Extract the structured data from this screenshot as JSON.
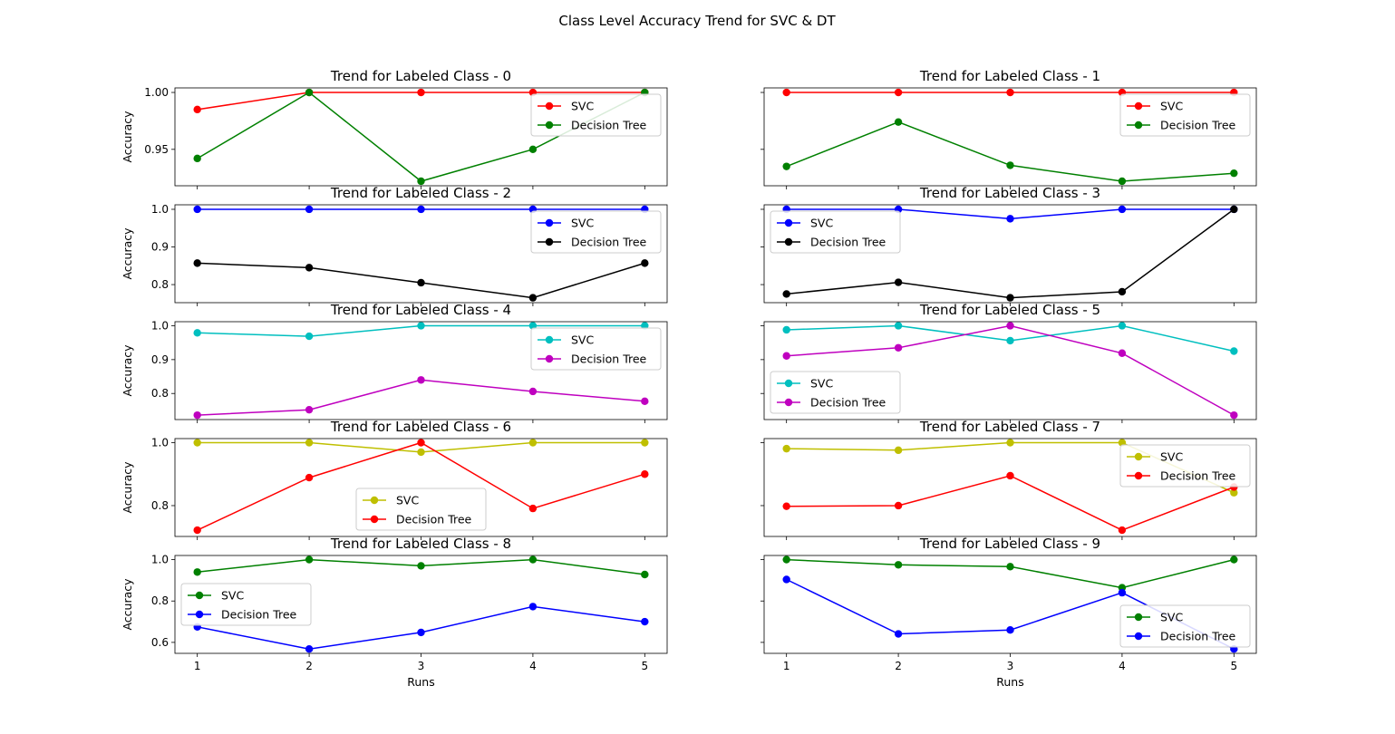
{
  "figure_title": "Class Level Accuracy Trend for SVC & DT",
  "chart_data": [
    {
      "type": "line",
      "title": "Trend for Labeled Class - 0",
      "x": [
        1,
        2,
        3,
        4,
        5
      ],
      "xticks": [
        "1",
        "2",
        "3",
        "4",
        "5"
      ],
      "xlabel": "",
      "ylabel": "Accuracy",
      "ylim": [
        0.918,
        1.004
      ],
      "yticks": [
        0.95,
        1.0
      ],
      "ytick_labels": [
        "0.95",
        "1.00"
      ],
      "legend": "upper-right",
      "grid": false,
      "series": [
        {
          "name": "SVC",
          "color": "#ff0000",
          "values": [
            0.985,
            1.0,
            1.0,
            1.0,
            1.0
          ]
        },
        {
          "name": "Decision Tree",
          "color": "#008000",
          "values": [
            0.942,
            1.0,
            0.922,
            0.95,
            1.0
          ]
        }
      ]
    },
    {
      "type": "line",
      "title": "Trend for Labeled Class - 1",
      "x": [
        1,
        2,
        3,
        4,
        5
      ],
      "xticks": [
        "1",
        "2",
        "3",
        "4",
        "5"
      ],
      "xlabel": "",
      "ylabel": "",
      "ylim": [
        0.918,
        1.004
      ],
      "yticks": [
        0.95,
        1.0
      ],
      "ytick_labels": [
        "",
        ""
      ],
      "legend": "upper-right",
      "grid": false,
      "series": [
        {
          "name": "SVC",
          "color": "#ff0000",
          "values": [
            1.0,
            1.0,
            1.0,
            1.0,
            1.0
          ]
        },
        {
          "name": "Decision Tree",
          "color": "#008000",
          "values": [
            0.935,
            0.974,
            0.936,
            0.922,
            0.929
          ]
        }
      ]
    },
    {
      "type": "line",
      "title": "Trend for Labeled Class - 2",
      "x": [
        1,
        2,
        3,
        4,
        5
      ],
      "xticks": [
        "1",
        "2",
        "3",
        "4",
        "5"
      ],
      "xlabel": "",
      "ylabel": "Accuracy",
      "ylim": [
        0.752,
        1.012
      ],
      "yticks": [
        0.8,
        0.9,
        1.0
      ],
      "ytick_labels": [
        "0.8",
        "0.9",
        "1.0"
      ],
      "legend": "upper-right",
      "grid": false,
      "series": [
        {
          "name": "SVC",
          "color": "#0000ff",
          "values": [
            1.0,
            1.0,
            1.0,
            1.0,
            1.0
          ]
        },
        {
          "name": "Decision Tree",
          "color": "#000000",
          "values": [
            0.857,
            0.845,
            0.805,
            0.765,
            0.857
          ]
        }
      ]
    },
    {
      "type": "line",
      "title": "Trend for Labeled Class - 3",
      "x": [
        1,
        2,
        3,
        4,
        5
      ],
      "xticks": [
        "1",
        "2",
        "3",
        "4",
        "5"
      ],
      "xlabel": "",
      "ylabel": "",
      "ylim": [
        0.752,
        1.012
      ],
      "yticks": [
        0.8,
        0.9,
        1.0
      ],
      "ytick_labels": [
        "",
        "",
        ""
      ],
      "legend": "upper-left",
      "grid": false,
      "series": [
        {
          "name": "SVC",
          "color": "#0000ff",
          "values": [
            1.0,
            1.0,
            0.975,
            1.0,
            1.0
          ]
        },
        {
          "name": "Decision Tree",
          "color": "#000000",
          "values": [
            0.775,
            0.806,
            0.765,
            0.781,
            1.0
          ]
        }
      ]
    },
    {
      "type": "line",
      "title": "Trend for Labeled Class - 4",
      "x": [
        1,
        2,
        3,
        4,
        5
      ],
      "xticks": [
        "1",
        "2",
        "3",
        "4",
        "5"
      ],
      "xlabel": "",
      "ylabel": "Accuracy",
      "ylim": [
        0.723,
        1.012
      ],
      "yticks": [
        0.8,
        0.9,
        1.0
      ],
      "ytick_labels": [
        "0.8",
        "0.9",
        "1.0"
      ],
      "legend": "upper-right",
      "grid": false,
      "series": [
        {
          "name": "SVC",
          "color": "#00bfbf",
          "values": [
            0.979,
            0.969,
            1.0,
            1.0,
            1.0
          ]
        },
        {
          "name": "Decision Tree",
          "color": "#bf00bf",
          "values": [
            0.736,
            0.752,
            0.84,
            0.806,
            0.777
          ]
        }
      ]
    },
    {
      "type": "line",
      "title": "Trend for Labeled Class - 5",
      "x": [
        1,
        2,
        3,
        4,
        5
      ],
      "xticks": [
        "1",
        "2",
        "3",
        "4",
        "5"
      ],
      "xlabel": "",
      "ylabel": "",
      "ylim": [
        0.723,
        1.012
      ],
      "yticks": [
        0.8,
        0.9,
        1.0
      ],
      "ytick_labels": [
        "",
        "",
        ""
      ],
      "legend": "lower-left",
      "grid": false,
      "series": [
        {
          "name": "SVC",
          "color": "#00bfbf",
          "values": [
            0.988,
            1.0,
            0.956,
            1.0,
            0.925
          ]
        },
        {
          "name": "Decision Tree",
          "color": "#bf00bf",
          "values": [
            0.911,
            0.935,
            1.0,
            0.919,
            0.736
          ]
        }
      ]
    },
    {
      "type": "line",
      "title": "Trend for Labeled Class - 6",
      "x": [
        1,
        2,
        3,
        4,
        5
      ],
      "xticks": [
        "1",
        "2",
        "3",
        "4",
        "5"
      ],
      "xlabel": "",
      "ylabel": "Accuracy",
      "ylim": [
        0.702,
        1.013
      ],
      "yticks": [
        0.8,
        1.0
      ],
      "ytick_labels": [
        "0.8",
        "1.0"
      ],
      "legend": "lower-center",
      "grid": false,
      "series": [
        {
          "name": "SVC",
          "color": "#bfbf00",
          "values": [
            1.0,
            1.0,
            0.97,
            1.0,
            1.0
          ]
        },
        {
          "name": "Decision Tree",
          "color": "#ff0000",
          "values": [
            0.722,
            0.889,
            1.0,
            0.791,
            0.9
          ]
        }
      ]
    },
    {
      "type": "line",
      "title": "Trend for Labeled Class - 7",
      "x": [
        1,
        2,
        3,
        4,
        5
      ],
      "xticks": [
        "1",
        "2",
        "3",
        "4",
        "5"
      ],
      "xlabel": "",
      "ylabel": "",
      "ylim": [
        0.702,
        1.013
      ],
      "yticks": [
        0.8,
        1.0
      ],
      "ytick_labels": [
        "",
        ""
      ],
      "legend": "upper-right",
      "grid": false,
      "series": [
        {
          "name": "SVC",
          "color": "#bfbf00",
          "values": [
            0.981,
            0.976,
            1.0,
            1.0,
            0.841
          ]
        },
        {
          "name": "Decision Tree",
          "color": "#ff0000",
          "values": [
            0.798,
            0.8,
            0.895,
            0.722,
            0.859
          ]
        }
      ]
    },
    {
      "type": "line",
      "title": "Trend for Labeled Class - 8",
      "x": [
        1,
        2,
        3,
        4,
        5
      ],
      "xticks": [
        "1",
        "2",
        "3",
        "4",
        "5"
      ],
      "xlabel": "Runs",
      "ylabel": "Accuracy",
      "ylim": [
        0.547,
        1.02
      ],
      "yticks": [
        0.6,
        0.8,
        1.0
      ],
      "ytick_labels": [
        "0.6",
        "0.8",
        "1.0"
      ],
      "legend": "center-left",
      "grid": false,
      "series": [
        {
          "name": "SVC",
          "color": "#008000",
          "values": [
            0.94,
            1.0,
            0.97,
            1.0,
            0.928
          ]
        },
        {
          "name": "Decision Tree",
          "color": "#0000ff",
          "values": [
            0.675,
            0.568,
            0.648,
            0.773,
            0.7
          ]
        }
      ]
    },
    {
      "type": "line",
      "title": "Trend for Labeled Class - 9",
      "x": [
        1,
        2,
        3,
        4,
        5
      ],
      "xticks": [
        "1",
        "2",
        "3",
        "4",
        "5"
      ],
      "xlabel": "Runs",
      "ylabel": "",
      "ylim": [
        0.547,
        1.02
      ],
      "yticks": [
        0.6,
        0.8,
        1.0
      ],
      "ytick_labels": [
        "",
        "",
        ""
      ],
      "legend": "lower-right",
      "grid": false,
      "series": [
        {
          "name": "SVC",
          "color": "#008000",
          "values": [
            1.0,
            0.975,
            0.966,
            0.864,
            1.0
          ]
        },
        {
          "name": "Decision Tree",
          "color": "#0000ff",
          "values": [
            0.904,
            0.641,
            0.66,
            0.84,
            0.568
          ]
        }
      ]
    }
  ]
}
